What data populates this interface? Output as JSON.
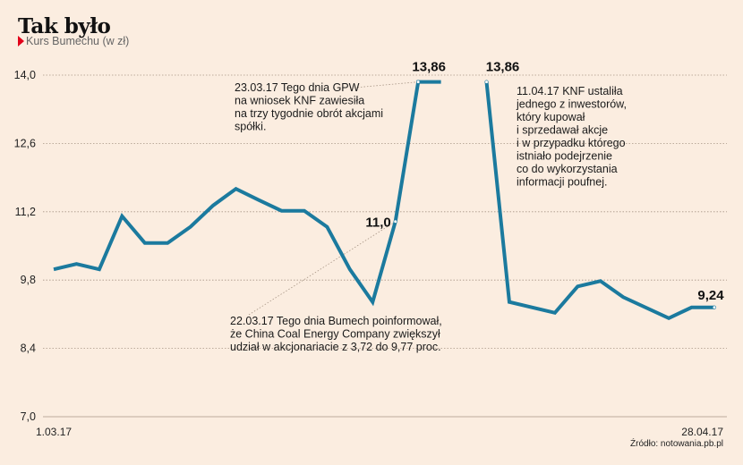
{
  "header": {
    "title": "Tak było",
    "subtitle": "Kurs Bumechu (w zł)"
  },
  "colors": {
    "background": "#fbede0",
    "line": "#1b7a9e",
    "marker_triangle": "#e2001a"
  },
  "chart_data": {
    "type": "line",
    "title": "Tak było",
    "subtitle": "Kurs Bumechu (w zł)",
    "xlabel": "",
    "ylabel": "",
    "ylim": [
      7.0,
      14.0
    ],
    "yticks": [
      "14,0",
      "12,6",
      "11,2",
      "9,8",
      "8,4",
      "7,0"
    ],
    "ytick_values": [
      14.0,
      12.6,
      11.2,
      9.8,
      8.4,
      7.0
    ],
    "xtick_labels": {
      "first": "1.03.17",
      "last": "28.04.17"
    },
    "grid": true,
    "x_count": 30,
    "series": [
      {
        "name": "Kurs Bumechu",
        "segments": [
          {
            "x": [
              0,
              1,
              2,
              3,
              4,
              5,
              6,
              7,
              8,
              9,
              10,
              11,
              12,
              13,
              14,
              15,
              16,
              17
            ],
            "values": [
              10.02,
              10.13,
              10.02,
              11.11,
              10.56,
              10.56,
              10.89,
              11.33,
              11.67,
              11.44,
              11.22,
              11.22,
              10.89,
              10.02,
              9.35,
              11.0,
              13.86,
              13.86
            ]
          },
          {
            "x": [
              19,
              20,
              22,
              23,
              24,
              25,
              27,
              28,
              29
            ],
            "values": [
              13.86,
              9.35,
              9.13,
              9.67,
              9.78,
              9.45,
              9.02,
              9.24,
              9.24
            ]
          }
        ]
      }
    ],
    "data_labels": [
      {
        "x": 15,
        "value": 11.0,
        "text": "11,0"
      },
      {
        "x": 16,
        "value": 13.86,
        "text": "13,86"
      },
      {
        "x": 19,
        "value": 13.86,
        "text": "13,86"
      },
      {
        "x": 29,
        "value": 9.24,
        "text": "9,24"
      }
    ],
    "annotations": [
      {
        "target_x": 16,
        "lines": [
          "23.03.17 Tego dnia GPW",
          "na wniosek KNF zawiesiła",
          "na trzy tygodnie obrót akcjami",
          "spółki."
        ]
      },
      {
        "target_x": 19,
        "lines": [
          "11.04.17 KNF ustaliła",
          "jednego z inwestorów,",
          "który kupował",
          "i sprzedawał akcje",
          "i w przypadku którego",
          "istniało podejrzenie",
          "co do wykorzystania",
          "informacji poufnej."
        ]
      },
      {
        "target_x": 15,
        "lines": [
          "22.03.17 Tego dnia Bumech poinformował,",
          "że China Coal Energy Company zwiększył",
          "udział w akcjonariacie z 3,72 do 9,77 proc."
        ]
      }
    ],
    "source": "Źródło: notowania.pb.pl"
  }
}
